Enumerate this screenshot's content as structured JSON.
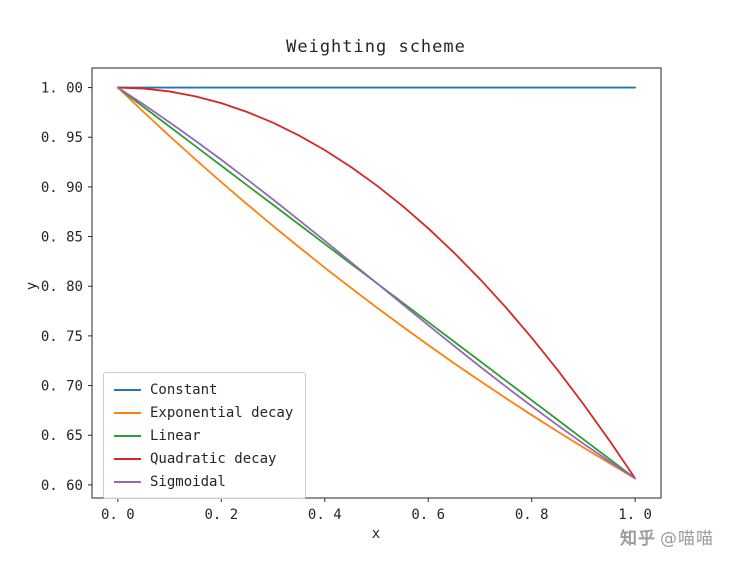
{
  "watermark": {
    "brand": "知乎",
    "handle": "@喵喵"
  },
  "chart_data": {
    "type": "line",
    "title": "Weighting scheme",
    "xlabel": "x",
    "ylabel": "y",
    "grid": false,
    "legend_position": "lower left",
    "xlim": [
      -0.05,
      1.05
    ],
    "ylim": [
      0.5868,
      1.0197
    ],
    "x_ticks": [
      0.0,
      0.2,
      0.4,
      0.6,
      0.8,
      1.0
    ],
    "x_tick_labels": [
      "0. 0",
      "0. 2",
      "0. 4",
      "0. 6",
      "0. 8",
      "1. 0"
    ],
    "y_ticks": [
      1.0,
      0.95,
      0.9,
      0.85,
      0.8,
      0.75,
      0.7,
      0.65,
      0.6
    ],
    "y_tick_labels": [
      "1. 00",
      "0. 95",
      "0. 90",
      "0. 85",
      "0. 80",
      "0. 75",
      "0. 70",
      "0. 65",
      "0. 60"
    ],
    "x": [
      0.0,
      0.05,
      0.1,
      0.15,
      0.2,
      0.25,
      0.3,
      0.35,
      0.4,
      0.45,
      0.5,
      0.55,
      0.6,
      0.65,
      0.7,
      0.75,
      0.8,
      0.85,
      0.9,
      0.95,
      1.0
    ],
    "series": [
      {
        "name": "Constant",
        "color": "#1f77b4",
        "values": [
          1.0,
          1.0,
          1.0,
          1.0,
          1.0,
          1.0,
          1.0,
          1.0,
          1.0,
          1.0,
          1.0,
          1.0,
          1.0,
          1.0,
          1.0,
          1.0,
          1.0,
          1.0,
          1.0,
          1.0,
          1.0
        ]
      },
      {
        "name": "Exponential decay",
        "color": "#ff7f0e",
        "values": [
          1.0,
          0.9753,
          0.9512,
          0.9277,
          0.9048,
          0.8825,
          0.8607,
          0.8395,
          0.8187,
          0.7985,
          0.7788,
          0.7596,
          0.7408,
          0.7225,
          0.7047,
          0.6873,
          0.6703,
          0.6538,
          0.6376,
          0.6219,
          0.6065
        ]
      },
      {
        "name": "Linear",
        "color": "#2ca02c",
        "values": [
          1.0,
          0.9803,
          0.9607,
          0.941,
          0.9213,
          0.9016,
          0.882,
          0.8623,
          0.8426,
          0.8229,
          0.8033,
          0.7836,
          0.7639,
          0.7442,
          0.7246,
          0.7049,
          0.6852,
          0.6656,
          0.6459,
          0.6262,
          0.6065
        ]
      },
      {
        "name": "Quadratic decay",
        "color": "#d62728",
        "values": [
          1.0,
          0.999,
          0.9961,
          0.9911,
          0.9843,
          0.9754,
          0.9646,
          0.9518,
          0.937,
          0.9203,
          0.9016,
          0.881,
          0.8583,
          0.8337,
          0.8072,
          0.7787,
          0.7482,
          0.7157,
          0.6813,
          0.6449,
          0.6065
        ]
      },
      {
        "name": "Sigmoidal",
        "color": "#9467bd",
        "values": [
          1.0,
          0.9829,
          0.965,
          0.9465,
          0.9273,
          0.9075,
          0.8873,
          0.8666,
          0.8457,
          0.8245,
          0.8033,
          0.782,
          0.7608,
          0.7399,
          0.7192,
          0.699,
          0.6793,
          0.6601,
          0.6415,
          0.6237,
          0.6065
        ]
      }
    ]
  }
}
